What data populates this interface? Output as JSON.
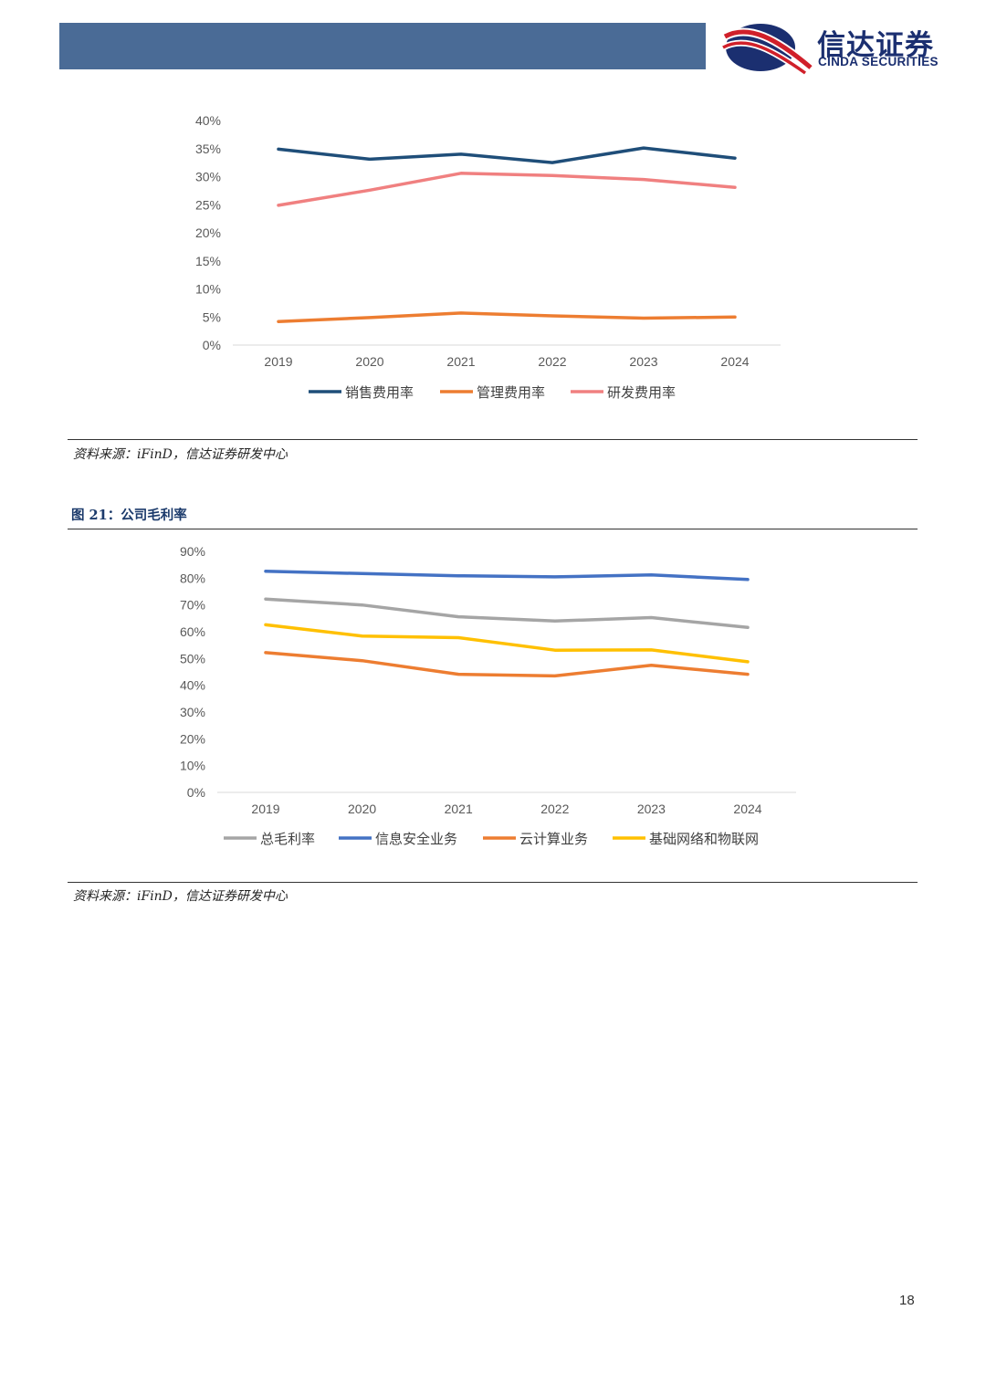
{
  "header": {
    "logo_cn": "信达证券",
    "logo_en": "CINDA SECURITIES"
  },
  "colors": {
    "header_bar": "#4a6b96",
    "logo_red": "#d0202a",
    "logo_navy": "#1b2f70"
  },
  "chart_data": [
    {
      "type": "line",
      "title": "",
      "categories": [
        "2019",
        "2020",
        "2021",
        "2022",
        "2023",
        "2024"
      ],
      "ylim": [
        0,
        40
      ],
      "ytick_labels": [
        "0%",
        "5%",
        "10%",
        "15%",
        "20%",
        "25%",
        "30%",
        "35%",
        "40%"
      ],
      "series": [
        {
          "name": "销售费用率",
          "color": "#1f4e79",
          "values": [
            34.9,
            33.1,
            34.0,
            32.5,
            35.1,
            33.3
          ]
        },
        {
          "name": "管理费用率",
          "color": "#ed7d31",
          "values": [
            4.2,
            4.9,
            5.7,
            5.2,
            4.8,
            5.0
          ]
        },
        {
          "name": "研发费用率",
          "color": "#f08080",
          "values": [
            24.9,
            27.6,
            30.6,
            30.2,
            29.5,
            28.1
          ]
        }
      ]
    },
    {
      "type": "line",
      "title": "图 21：公司毛利率",
      "categories": [
        "2019",
        "2020",
        "2021",
        "2022",
        "2023",
        "2024"
      ],
      "ylim": [
        0,
        90
      ],
      "ytick_labels": [
        "0%",
        "10%",
        "20%",
        "30%",
        "40%",
        "50%",
        "60%",
        "70%",
        "80%",
        "90%"
      ],
      "series": [
        {
          "name": "总毛利率",
          "color": "#a5a5a5",
          "values": [
            72.2,
            70.0,
            65.6,
            64.0,
            65.3,
            61.6
          ]
        },
        {
          "name": "信息安全业务",
          "color": "#4472c4",
          "values": [
            82.6,
            81.7,
            80.9,
            80.5,
            81.2,
            79.5
          ]
        },
        {
          "name": "云计算业务",
          "color": "#ed7d31",
          "values": [
            52.2,
            49.2,
            44.1,
            43.5,
            47.5,
            44.1
          ]
        },
        {
          "name": "基础网络和物联网",
          "color": "#ffc000",
          "values": [
            62.6,
            58.4,
            57.8,
            53.1,
            53.2,
            48.8
          ]
        }
      ]
    }
  ],
  "sources": {
    "chart1": "资料来源：iFinD，信达证券研发中心",
    "chart2": "资料来源：iFinD，信达证券研发中心"
  },
  "figure_title": "图 21：公司毛利率",
  "page_number": "18"
}
